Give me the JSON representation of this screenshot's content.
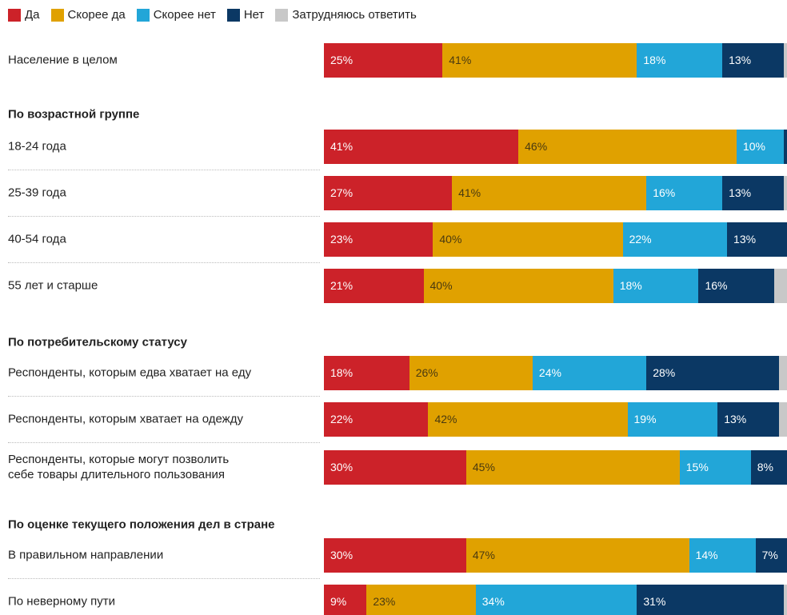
{
  "chart_data": {
    "type": "bar",
    "orientation": "horizontal",
    "stacked": true,
    "xlim": [
      0,
      100
    ],
    "groups": [
      {
        "categories": [
          "Население в целом"
        ]
      },
      {
        "title": "По возрастной группе",
        "categories": [
          "18-24 года",
          "25-39 года",
          "40-54 года",
          "55 лет и старше"
        ]
      },
      {
        "title": "По потребительскому статусу",
        "categories": [
          "Респонденты, которым едва хватает на еду",
          "Респонденты, которым хватает на одежду",
          "Респонденты, которые могут позволить\nсебе товары длительного пользования"
        ]
      },
      {
        "title": "По оценке текущего положения дел в стране",
        "categories": [
          "В правильном направлении",
          "По неверному пути"
        ]
      }
    ],
    "series": [
      {
        "name": "Да",
        "color": "#cc2229",
        "values": [
          25,
          41,
          27,
          23,
          21,
          18,
          22,
          30,
          30,
          9
        ],
        "value_labels": [
          "25%",
          "41%",
          "27%",
          "23%",
          "21%",
          "18%",
          "22%",
          "30%",
          "30%",
          "9%"
        ]
      },
      {
        "name": "Скорее да",
        "color": "#e0a100",
        "values": [
          41,
          46,
          41,
          40,
          40,
          26,
          42,
          45,
          47,
          23
        ],
        "value_labels": [
          "41%",
          "46%",
          "41%",
          "40%",
          "40%",
          "26%",
          "42%",
          "45%",
          "47%",
          "23%"
        ]
      },
      {
        "name": "Скорее нет",
        "color": "#22a6d8",
        "values": [
          18,
          10,
          16,
          22,
          18,
          24,
          19,
          15,
          14,
          34
        ],
        "value_labels": [
          "18%",
          "10%",
          "16%",
          "22%",
          "18%",
          "24%",
          "19%",
          "15%",
          "14%",
          "34%"
        ]
      },
      {
        "name": "Нет",
        "color": "#0b3864",
        "values": [
          13,
          1,
          13,
          13,
          16,
          28,
          13,
          8,
          7,
          31
        ],
        "value_labels": [
          "13%",
          null,
          "13%",
          "13%",
          "16%",
          "28%",
          "13%",
          "8%",
          "7%",
          "31%"
        ]
      },
      {
        "name": "Затрудняюсь ответить",
        "color": "#c8c8c8",
        "values": [
          3,
          2,
          3,
          2,
          5,
          4,
          4,
          2,
          2,
          3
        ],
        "value_labels": [
          null,
          null,
          null,
          null,
          null,
          null,
          null,
          null,
          null,
          null
        ]
      }
    ]
  }
}
